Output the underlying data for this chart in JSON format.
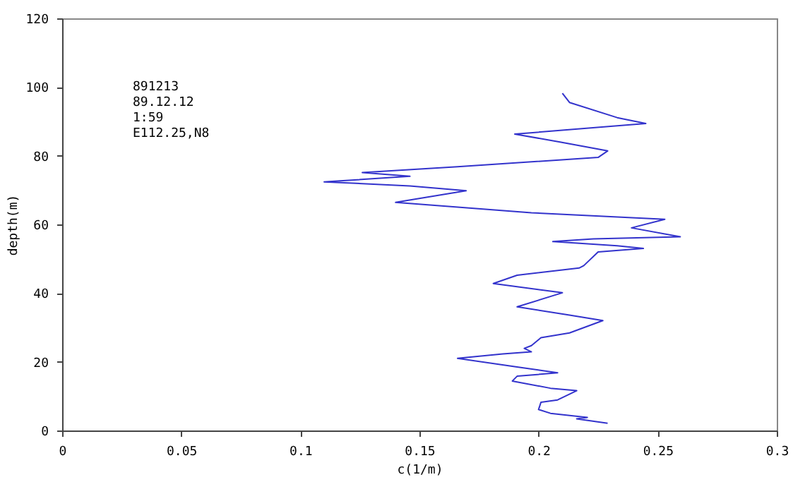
{
  "chart_data": {
    "type": "line",
    "xlabel": "c(1/m)",
    "ylabel": "depth(m)",
    "annotations": [
      "891213",
      "89.12.12",
      "1:59",
      "E112.25,N8"
    ],
    "xlim": [
      0,
      0.3
    ],
    "xticks": [
      0,
      0.05,
      0.1,
      0.15,
      0.2,
      0.25,
      0.3
    ],
    "ylim": [
      0,
      120
    ],
    "yticks": [
      0,
      20,
      40,
      60,
      80,
      100,
      120
    ],
    "grid": false,
    "series": [
      {
        "color": "#3333cc",
        "x": [
          0.229,
          0.216,
          0.2205,
          0.205,
          0.2,
          0.201,
          0.208,
          0.216,
          0.205,
          0.189,
          0.191,
          0.208,
          0.191,
          0.166,
          0.185,
          0.197,
          0.194,
          0.197,
          0.201,
          0.213,
          0.227,
          0.213,
          0.191,
          0.21,
          0.181,
          0.191,
          0.217,
          0.219,
          0.225,
          0.244,
          0.233,
          0.206,
          0.223,
          0.2595,
          0.239,
          0.253,
          0.197,
          0.14,
          0.1696,
          0.146,
          0.11,
          0.146,
          0.126,
          0.166,
          0.225,
          0.229,
          0.209,
          0.19,
          0.245,
          0.233,
          0.213,
          0.21
        ],
        "values": [
          2.1,
          3.4,
          3.8,
          5.0,
          6.1,
          8.2,
          8.9,
          11.6,
          12.3,
          14.4,
          15.8,
          16.8,
          18.5,
          21.0,
          22.3,
          22.9,
          23.9,
          24.7,
          27.0,
          28.4,
          32.0,
          33.6,
          36.0,
          40.1,
          42.8,
          45.2,
          47.3,
          48.0,
          52.0,
          53.0,
          53.8,
          55.0,
          55.8,
          56.4,
          59.0,
          61.5,
          63.4,
          66.4,
          69.8,
          71.2,
          72.4,
          74.0,
          75.1,
          76.8,
          79.5,
          81.4,
          84.0,
          86.3,
          89.4,
          91.1,
          95.5,
          98.2
        ]
      }
    ]
  }
}
